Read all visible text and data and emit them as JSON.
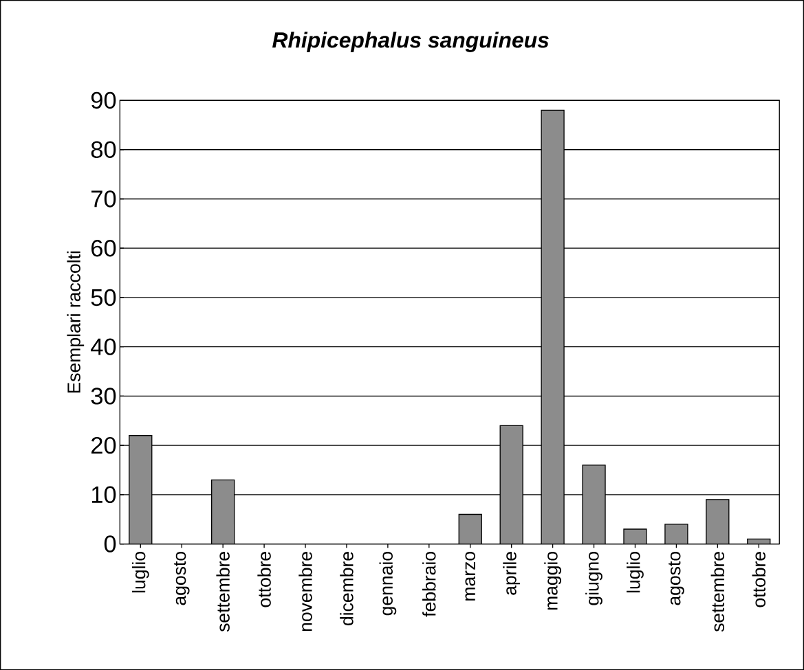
{
  "chart_data": {
    "type": "bar",
    "title": "Rhipicephalus sanguineus",
    "ylabel": "Esemplari raccolti",
    "categories": [
      "luglio",
      "agosto",
      "settembre",
      "ottobre",
      "novembre",
      "dicembre",
      "gennaio",
      "febbraio",
      "marzo",
      "aprile",
      "maggio",
      "giugno",
      "luglio",
      "agosto",
      "settembre",
      "ottobre"
    ],
    "values": [
      22,
      0,
      13,
      0,
      0,
      0,
      0,
      0,
      6,
      24,
      88,
      16,
      3,
      4,
      9,
      1
    ],
    "color": "#8c8c8c",
    "ylim": [
      0,
      90
    ],
    "yticks": [
      0,
      10,
      20,
      30,
      40,
      50,
      60,
      70,
      80,
      90
    ],
    "grid": "y"
  }
}
